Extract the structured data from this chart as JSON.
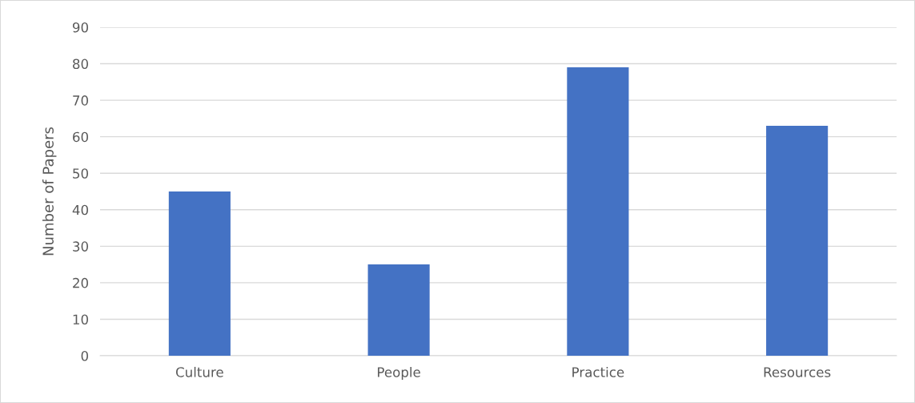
{
  "chart_data": {
    "type": "bar",
    "ylabel": "Number of Papers",
    "categories": [
      "Culture",
      "People",
      "Practice",
      "Resources"
    ],
    "values": [
      45,
      25,
      79,
      63
    ],
    "color": "#4472c4",
    "ylim": [
      0,
      90
    ],
    "yticks": [
      0,
      10,
      20,
      30,
      40,
      50,
      60,
      70,
      80,
      90
    ],
    "grid": "y"
  }
}
